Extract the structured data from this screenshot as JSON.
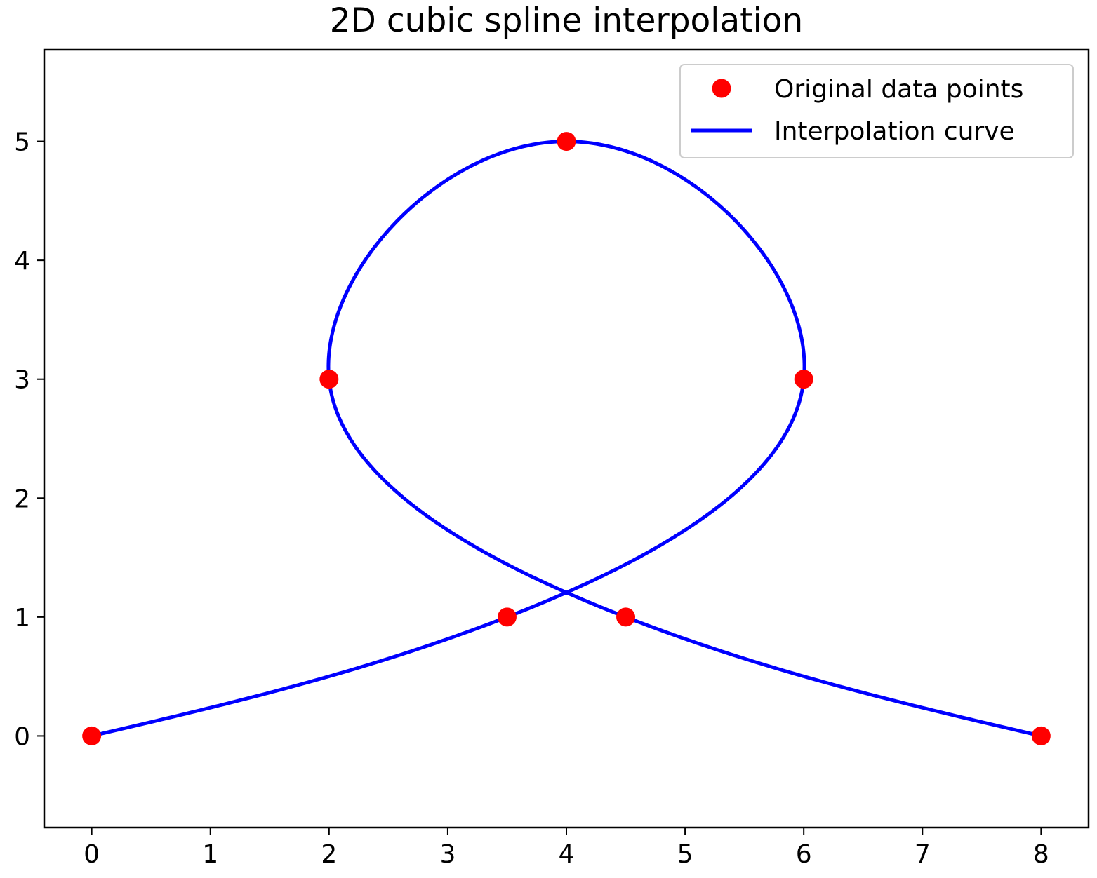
{
  "chart_data": {
    "type": "line",
    "title": "2D cubic spline interpolation",
    "xlabel": "",
    "ylabel": "",
    "xlim": [
      -0.4,
      8.4
    ],
    "ylim": [
      -0.77,
      5.77
    ],
    "xticks": [
      "0",
      "1",
      "2",
      "3",
      "4",
      "5",
      "6",
      "7",
      "8"
    ],
    "yticks": [
      "0",
      "1",
      "2",
      "3",
      "4",
      "5"
    ],
    "grid": false,
    "legend": {
      "position": "upper right",
      "entries": [
        "Original data points",
        "Interpolation curve"
      ]
    },
    "series": [
      {
        "name": "Original data points",
        "kind": "scatter",
        "color": "#ff0000",
        "points": [
          [
            0,
            0
          ],
          [
            3.5,
            1
          ],
          [
            6,
            3
          ],
          [
            4,
            5
          ],
          [
            2,
            3
          ],
          [
            4.5,
            1
          ],
          [
            8,
            0
          ]
        ]
      },
      {
        "name": "Interpolation curve",
        "kind": "parametric cubic spline through the data points",
        "color": "#0000ff"
      }
    ]
  }
}
